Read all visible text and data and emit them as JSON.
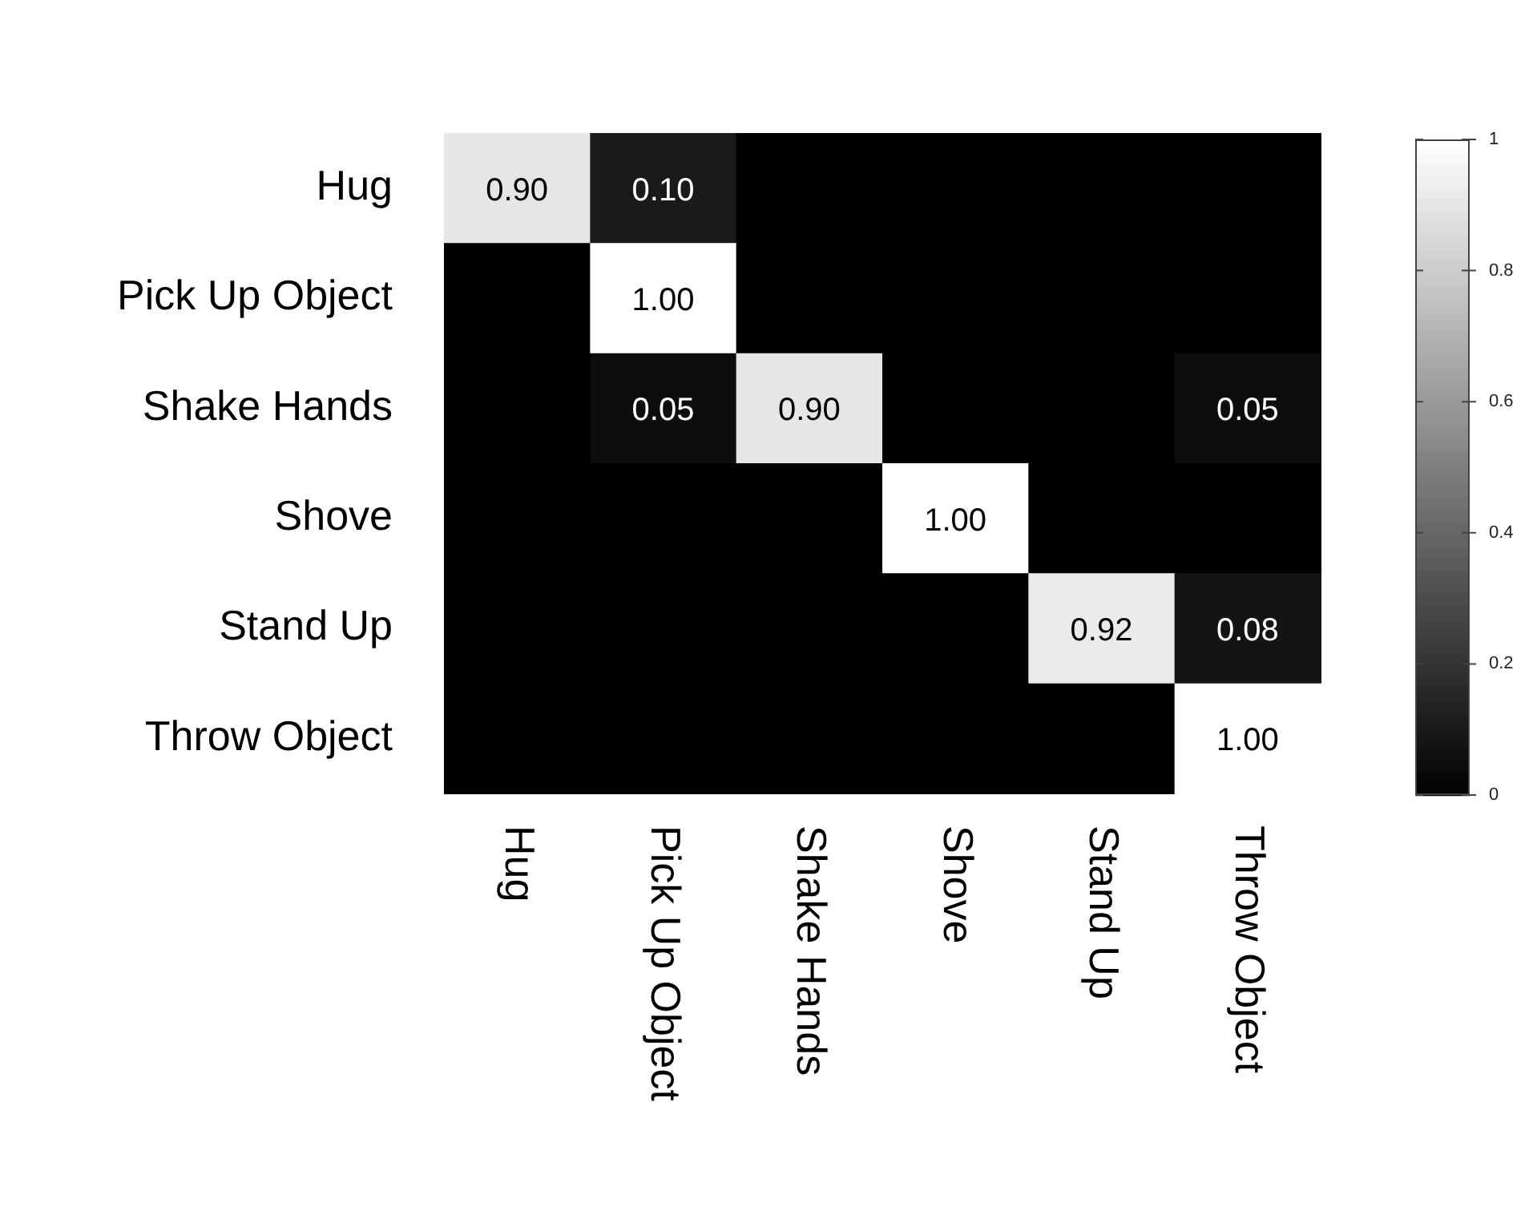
{
  "chart_data": {
    "type": "heatmap",
    "categories": [
      "Hug",
      "Pick Up Object",
      "Shake Hands",
      "Shove",
      "Stand Up",
      "Throw Object"
    ],
    "y_categories": [
      "Hug",
      "Pick Up Object",
      "Shake Hands",
      "Shove",
      "Stand Up",
      "Throw Object"
    ],
    "cells": [
      [
        0.9,
        0.1,
        0,
        0,
        0,
        0
      ],
      [
        0,
        1,
        0,
        0,
        0,
        0
      ],
      [
        0,
        0.05,
        0.9,
        0,
        0,
        0.05
      ],
      [
        0,
        0,
        0,
        1,
        0,
        0
      ],
      [
        0,
        0,
        0,
        0,
        0.92,
        0.08
      ],
      [
        0,
        0,
        0,
        0,
        0,
        1
      ]
    ],
    "cell_labels": [
      [
        "0.90",
        "0.10",
        null,
        null,
        null,
        null
      ],
      [
        null,
        "1.00",
        null,
        null,
        null,
        null
      ],
      [
        null,
        "0.05",
        "0.90",
        null,
        null,
        "0.05"
      ],
      [
        null,
        null,
        null,
        "1.00",
        null,
        null
      ],
      [
        null,
        null,
        null,
        null,
        "0.92",
        "0.08"
      ],
      [
        null,
        null,
        null,
        null,
        null,
        "1.00"
      ]
    ],
    "clim": [
      0,
      1
    ],
    "cticks": [
      0,
      0.2,
      0.4,
      0.6,
      0.8,
      1
    ]
  }
}
